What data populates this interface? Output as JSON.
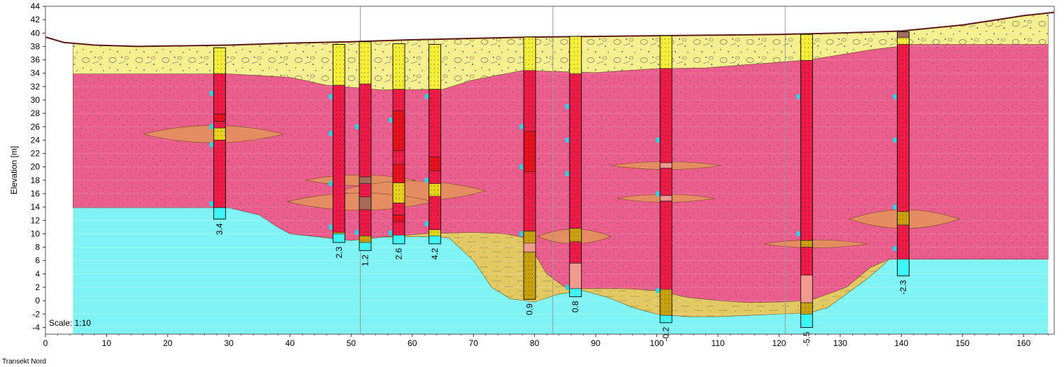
{
  "caption": "Transekt Nord",
  "scale_label": "Scale: 1:10",
  "ylabel": "Elevation [m]",
  "colors": {
    "gravel_fill": "#f6ef8e",
    "clay_fill": "#eb5d8c",
    "water_fill": "#80f4f4",
    "sand_fill": "#e2c962",
    "lens_fill": "#e49060",
    "column_clay": "#ee1b47",
    "column_gravel": "#f7ef37",
    "column_sand": "#c9a20b",
    "column_salmon": "#f29990",
    "column_water": "#3ef5f5",
    "ground_line": "#5a1a1a"
  },
  "chart_data": {
    "type": "cross-section",
    "xlabel": "",
    "ylabel": "Elevation [m]",
    "xlim": [
      0,
      165
    ],
    "ylim": [
      -5,
      44
    ],
    "x_ticks": [
      0,
      10,
      20,
      30,
      40,
      50,
      60,
      70,
      80,
      90,
      100,
      110,
      120,
      130,
      140,
      150,
      160
    ],
    "y_ticks": [
      -4,
      -2,
      0,
      2,
      4,
      6,
      8,
      10,
      12,
      14,
      16,
      18,
      20,
      22,
      24,
      26,
      28,
      30,
      32,
      34,
      36,
      38,
      40,
      42,
      44
    ],
    "vertical_gridlines_x": [
      51.5,
      83,
      121
    ],
    "section_x_range": [
      4.5,
      164
    ],
    "ground_surface": [
      [
        0,
        39.4
      ],
      [
        3,
        38.6
      ],
      [
        8,
        38.2
      ],
      [
        15,
        38
      ],
      [
        30,
        38.2
      ],
      [
        40,
        38.5
      ],
      [
        50,
        38.7
      ],
      [
        60,
        39
      ],
      [
        70,
        39.2
      ],
      [
        80,
        39.4
      ],
      [
        90,
        39.5
      ],
      [
        100,
        39.6
      ],
      [
        110,
        39.7
      ],
      [
        120,
        39.8
      ],
      [
        130,
        40
      ],
      [
        140,
        40.3
      ],
      [
        150,
        41.2
      ],
      [
        160,
        42.6
      ],
      [
        165,
        43.1
      ]
    ],
    "clay_top": [
      [
        4.5,
        33.9
      ],
      [
        20,
        33.9
      ],
      [
        30,
        33.9
      ],
      [
        40,
        33.4
      ],
      [
        46,
        32.2
      ],
      [
        55,
        31.5
      ],
      [
        65,
        31.6
      ],
      [
        70,
        33
      ],
      [
        78,
        34.4
      ],
      [
        90,
        34.1
      ],
      [
        100,
        34.7
      ],
      [
        108,
        34.8
      ],
      [
        115,
        35.3
      ],
      [
        125,
        36
      ],
      [
        135,
        37.5
      ],
      [
        142,
        38.3
      ],
      [
        164,
        38.3
      ]
    ],
    "water_top": [
      [
        4.5,
        13.9
      ],
      [
        30,
        13.9
      ],
      [
        35,
        12.8
      ],
      [
        38,
        11
      ],
      [
        40,
        10
      ],
      [
        45,
        9.5
      ],
      [
        50,
        9
      ],
      [
        55,
        9.5
      ],
      [
        62,
        10
      ],
      [
        70,
        10.2
      ],
      [
        75,
        10
      ],
      [
        78,
        9.5
      ],
      [
        80,
        7
      ],
      [
        82,
        4
      ],
      [
        85,
        2
      ],
      [
        88,
        1.8
      ],
      [
        95,
        1.8
      ],
      [
        100,
        1.5
      ],
      [
        105,
        0.5
      ],
      [
        110,
        0
      ],
      [
        115,
        -0.3
      ],
      [
        120,
        -0.2
      ],
      [
        125,
        0
      ],
      [
        128,
        1
      ],
      [
        131,
        2
      ],
      [
        135,
        5
      ],
      [
        138,
        6.2
      ],
      [
        164,
        6.2
      ]
    ],
    "sand_bottom": [
      [
        40,
        10
      ],
      [
        45,
        9.5
      ],
      [
        50,
        9
      ],
      [
        55,
        9.5
      ],
      [
        62,
        9.6
      ],
      [
        66,
        9.4
      ],
      [
        70,
        6
      ],
      [
        73,
        2
      ],
      [
        76,
        0.3
      ],
      [
        80,
        -0.2
      ],
      [
        84,
        1
      ],
      [
        88,
        1.5
      ],
      [
        92,
        0.5
      ],
      [
        96,
        -1
      ],
      [
        100,
        -2
      ],
      [
        105,
        -2.4
      ],
      [
        110,
        -2.4
      ],
      [
        115,
        -2.2
      ],
      [
        120,
        -2
      ],
      [
        125,
        -1.8
      ],
      [
        128,
        -1
      ],
      [
        131,
        1
      ],
      [
        134,
        3
      ],
      [
        136,
        4.5
      ],
      [
        138,
        6.2
      ]
    ],
    "lenses": [
      {
        "cx": 27.5,
        "cy": 24.9,
        "half_width": 11.5,
        "half_height": 1.3
      },
      {
        "cx": 51.5,
        "cy": 18,
        "half_width": 9,
        "half_height": 0.8
      },
      {
        "cx": 60,
        "cy": 16.4,
        "half_width": 12,
        "half_height": 1.5
      },
      {
        "cx": 51.5,
        "cy": 14.8,
        "half_width": 12,
        "half_height": 1.3
      },
      {
        "cx": 86.5,
        "cy": 9.6,
        "half_width": 6,
        "half_height": 1.1
      },
      {
        "cx": 101.5,
        "cy": 20.2,
        "half_width": 9,
        "half_height": 0.6
      },
      {
        "cx": 101.5,
        "cy": 15.3,
        "half_width": 8,
        "half_height": 0.6
      },
      {
        "cx": 126,
        "cy": 8.5,
        "half_width": 8.5,
        "half_height": 0.6
      },
      {
        "cx": 140.5,
        "cy": 12.2,
        "half_width": 9,
        "half_height": 1.4
      }
    ],
    "boreholes": [
      {
        "x": 28.5,
        "top": 37.8,
        "bottom": 12.2,
        "water_level_label": "3.4",
        "layers": [
          [
            "gravel",
            37.8,
            33.9
          ],
          [
            "clay",
            33.9,
            27.9
          ],
          [
            "red",
            27.9,
            26.8
          ],
          [
            "clay",
            26.8,
            25.8
          ],
          [
            "yellow",
            25.8,
            24
          ],
          [
            "clay",
            24,
            13.9
          ],
          [
            "water",
            13.9,
            12.2
          ]
        ],
        "markers": [
          31,
          26,
          23.3,
          14.5
        ]
      },
      {
        "x": 48,
        "top": 38.3,
        "bottom": 8.7,
        "water_level_label": "2.3",
        "layers": [
          [
            "gravel",
            38.3,
            32.2
          ],
          [
            "clay",
            32.2,
            10.2
          ],
          [
            "yellow",
            10.2,
            10
          ],
          [
            "water",
            10,
            8.7
          ]
        ],
        "markers": [
          30.5,
          25,
          17.5,
          11
        ]
      },
      {
        "x": 52.3,
        "top": 38.7,
        "bottom": 7.5,
        "water_level_label": "1.2",
        "layers": [
          [
            "gravel",
            38.7,
            32.4
          ],
          [
            "clay",
            32.4,
            18.5
          ],
          [
            "brown",
            18.5,
            17.5
          ],
          [
            "clay",
            17.5,
            15.5
          ],
          [
            "brown",
            15.5,
            13.6
          ],
          [
            "clay",
            13.6,
            9.7
          ],
          [
            "sand",
            9.7,
            8.7
          ],
          [
            "water",
            8.7,
            7.5
          ]
        ],
        "markers": [
          26,
          10.2
        ]
      },
      {
        "x": 57.8,
        "top": 38.4,
        "bottom": 8.5,
        "water_level_label": "2.6",
        "layers": [
          [
            "gravel",
            38.4,
            31.6
          ],
          [
            "clay",
            31.6,
            28.4
          ],
          [
            "red",
            28.4,
            22.4
          ],
          [
            "clay",
            22.4,
            20.4
          ],
          [
            "red",
            20.4,
            17.6
          ],
          [
            "yellow",
            17.6,
            14.6
          ],
          [
            "clay",
            14.6,
            12.8
          ],
          [
            "red",
            12.8,
            11.8
          ],
          [
            "clay",
            11.8,
            9.8
          ],
          [
            "water",
            9.8,
            8.5
          ]
        ],
        "markers": [
          27,
          10.1
        ]
      },
      {
        "x": 63.7,
        "top": 38.3,
        "bottom": 8.5,
        "water_level_label": "4.2",
        "layers": [
          [
            "gravel",
            38.3,
            31.6
          ],
          [
            "clay",
            31.6,
            21.5
          ],
          [
            "red",
            21.5,
            19.4
          ],
          [
            "clay",
            19.4,
            17.5
          ],
          [
            "yellow",
            17.5,
            15.6
          ],
          [
            "clay",
            15.6,
            10.6
          ],
          [
            "yellow",
            10.6,
            9.7
          ],
          [
            "water",
            9.7,
            8.5
          ]
        ],
        "markers": [
          30.5,
          18,
          11.5
        ]
      },
      {
        "x": 79.2,
        "top": 39.4,
        "bottom": 0.2,
        "water_level_label": "0.9",
        "layers": [
          [
            "gravel",
            39.4,
            34.4
          ],
          [
            "clay",
            34.4,
            25.3
          ],
          [
            "red",
            25.3,
            19.3
          ],
          [
            "clay",
            19.3,
            10.4
          ],
          [
            "sand",
            10.4,
            8.6
          ],
          [
            "salmon",
            8.6,
            7.3
          ],
          [
            "sand",
            7.3,
            0.2
          ]
        ],
        "markers": [
          26,
          20,
          10
        ]
      },
      {
        "x": 86.7,
        "top": 39.5,
        "bottom": 0.6,
        "water_level_label": "0.8",
        "layers": [
          [
            "gravel",
            39.5,
            33.9
          ],
          [
            "clay",
            33.9,
            10.8
          ],
          [
            "sand",
            10.8,
            8.8
          ],
          [
            "clay",
            8.8,
            5.6
          ],
          [
            "salmon",
            5.6,
            1.8
          ],
          [
            "water",
            1.8,
            0.6
          ]
        ],
        "markers": [
          29,
          24,
          19,
          2
        ]
      },
      {
        "x": 101.5,
        "top": 39.6,
        "bottom": -3.3,
        "water_level_label": "-0.2",
        "layers": [
          [
            "gravel",
            39.6,
            34.7
          ],
          [
            "clay",
            34.7,
            20.6
          ],
          [
            "salmon",
            20.6,
            19.8
          ],
          [
            "clay",
            19.8,
            15.7
          ],
          [
            "salmon",
            15.7,
            14.9
          ],
          [
            "clay",
            14.9,
            1.7
          ],
          [
            "sand",
            1.7,
            -2.2
          ],
          [
            "water",
            -2.2,
            -3.3
          ]
        ],
        "markers": [
          24,
          16,
          1.5
        ]
      },
      {
        "x": 124.5,
        "top": 39.8,
        "bottom": -4,
        "water_level_label": "-5.5",
        "layers": [
          [
            "gravel",
            39.8,
            35.9
          ],
          [
            "clay",
            35.9,
            9
          ],
          [
            "sand",
            9,
            8
          ],
          [
            "clay",
            8,
            3.8
          ],
          [
            "salmon",
            3.8,
            -0.3
          ],
          [
            "sand",
            -0.3,
            -2
          ],
          [
            "water",
            -2,
            -4
          ]
        ],
        "markers": [
          30.5,
          10
        ]
      },
      {
        "x": 140.3,
        "top": 40.2,
        "bottom": 3.7,
        "water_level_label": "-2.3",
        "layers": [
          [
            "brown",
            40.2,
            39.3
          ],
          [
            "gravel",
            39.3,
            38.3
          ],
          [
            "clay",
            38.3,
            13.3
          ],
          [
            "sand",
            13.3,
            11.3
          ],
          [
            "clay",
            11.3,
            6.2
          ],
          [
            "water",
            6.2,
            3.7
          ]
        ],
        "markers": [
          30.5,
          24,
          14,
          7.8
        ]
      }
    ]
  }
}
